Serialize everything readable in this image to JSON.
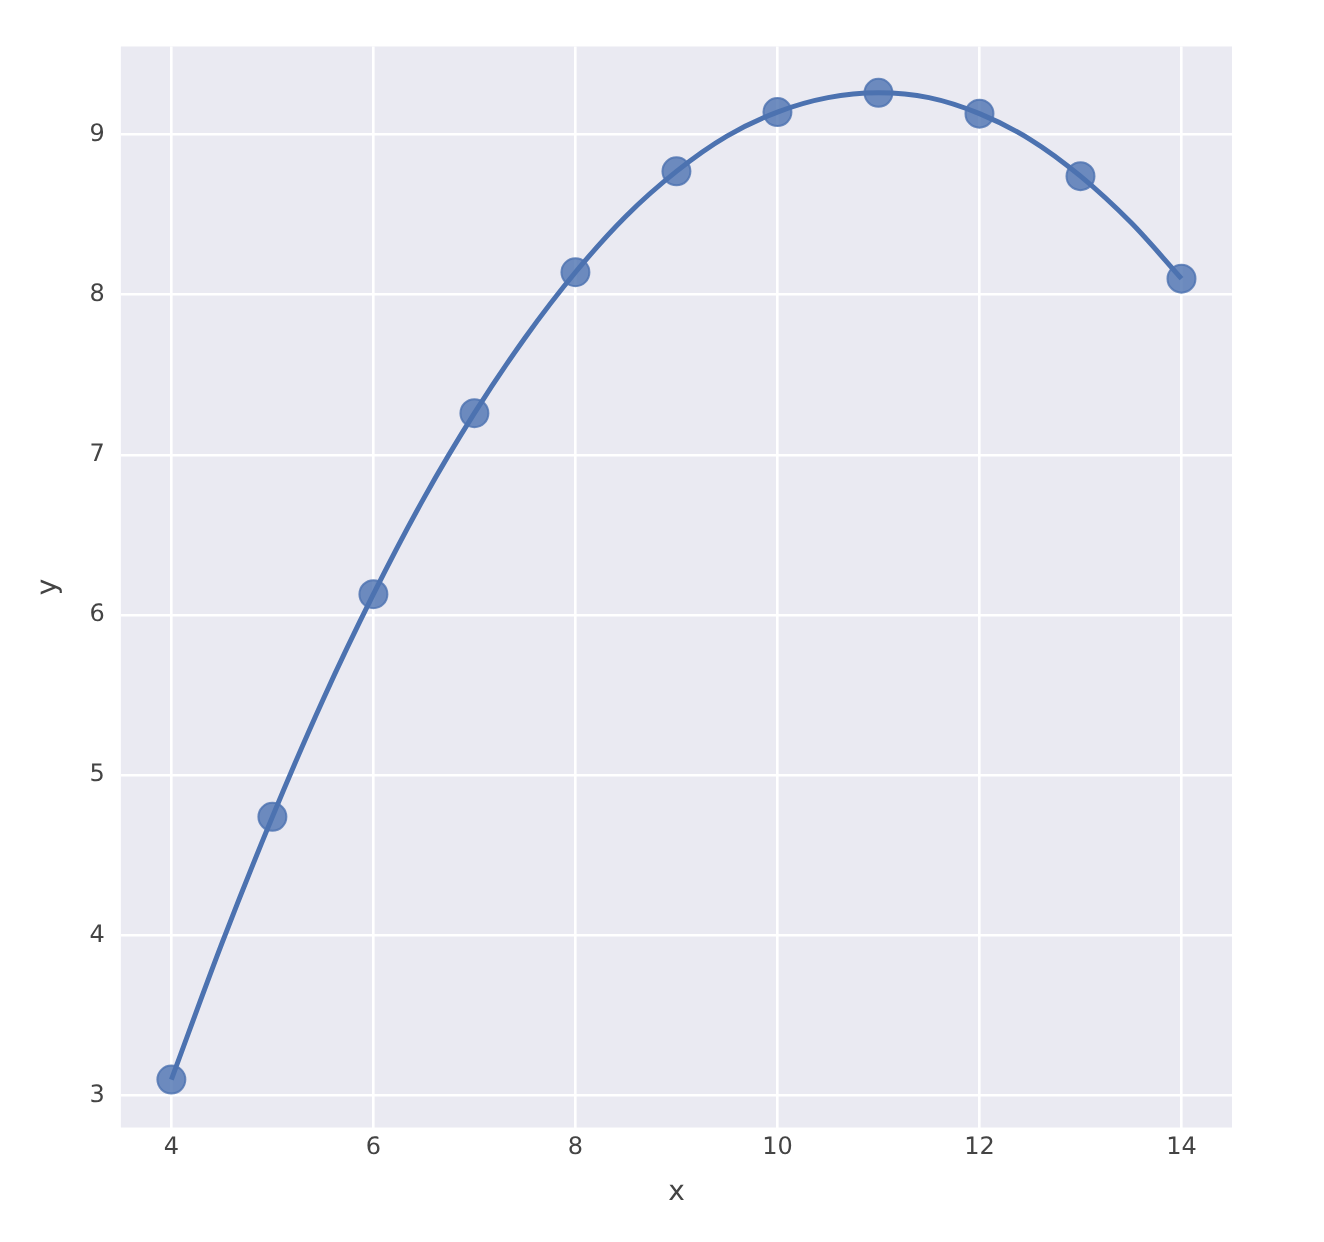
{
  "chart_data": {
    "type": "scatter",
    "xlabel": "x",
    "ylabel": "y",
    "xlim": [
      3.5,
      14.5
    ],
    "ylim": [
      2.8,
      9.55
    ],
    "xticks": [
      4,
      6,
      8,
      10,
      12,
      14
    ],
    "yticks": [
      3,
      4,
      5,
      6,
      7,
      8,
      9
    ],
    "grid": true,
    "legend": false,
    "series": [
      {
        "color": "#4c72b0",
        "marker": "circle",
        "x": [
          4,
          5,
          6,
          7,
          8,
          9,
          10,
          11,
          12,
          13,
          14
        ],
        "values": [
          3.1,
          4.74,
          6.13,
          7.26,
          8.14,
          8.77,
          9.14,
          9.26,
          9.13,
          8.74,
          8.1
        ]
      },
      {
        "type": "line",
        "color": "#4c72b0",
        "marker": "none",
        "line_style": "solid",
        "x": [
          4,
          4.5,
          5,
          5.5,
          6,
          6.5,
          7,
          7.5,
          8,
          8.5,
          9,
          9.5,
          10,
          10.5,
          11,
          11.5,
          12,
          12.5,
          13,
          13.5,
          14
        ],
        "values": [
          3.1,
          3.95,
          4.74,
          5.47,
          6.13,
          6.73,
          7.26,
          7.73,
          8.14,
          8.49,
          8.77,
          8.99,
          9.14,
          9.23,
          9.26,
          9.23,
          9.13,
          8.97,
          8.74,
          8.45,
          8.1
        ]
      }
    ]
  }
}
